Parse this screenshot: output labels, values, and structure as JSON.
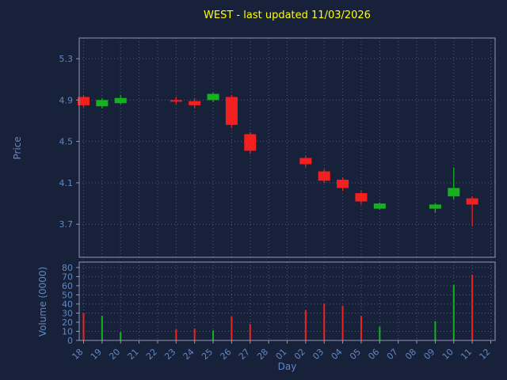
{
  "figure": {
    "title": "WEST - last updated 11/03/2026",
    "xlabel": "Day",
    "price_ylabel": "Price",
    "volume_ylabel": "Volume (0000)"
  },
  "colors": {
    "background": "#18213a",
    "title": "#ffff00",
    "label": "#6188c0",
    "tick": "#6188c0",
    "grid": "#4d5a78",
    "spine": "#8e9bb3",
    "up": "#14b31e",
    "down": "#f32020"
  },
  "chart_data": [
    {
      "type": "candlestick",
      "title": "WEST - last updated 11/03/2026",
      "xlabel": "Day",
      "ylabel": "Price",
      "x_ticks": [
        "18",
        "19",
        "20",
        "21",
        "22",
        "23",
        "24",
        "25",
        "26",
        "27",
        "28",
        "01",
        "02",
        "03",
        "04",
        "05",
        "06",
        "07",
        "08",
        "09",
        "10",
        "11",
        "12"
      ],
      "y_ticks": [
        5.3,
        4.9,
        4.5,
        4.1,
        3.7
      ],
      "ylim": [
        3.38,
        5.5
      ],
      "grid": true,
      "candles": [
        {
          "day": "18",
          "open": 4.93,
          "high": 4.95,
          "low": 4.83,
          "close": 4.85
        },
        {
          "day": "19",
          "open": 4.84,
          "high": 4.92,
          "low": 4.82,
          "close": 4.9
        },
        {
          "day": "20",
          "open": 4.87,
          "high": 4.95,
          "low": 4.86,
          "close": 4.92
        },
        {
          "day": "23",
          "open": 4.9,
          "high": 4.93,
          "low": 4.86,
          "close": 4.89
        },
        {
          "day": "24",
          "open": 4.89,
          "high": 4.92,
          "low": 4.82,
          "close": 4.85
        },
        {
          "day": "25",
          "open": 4.9,
          "high": 4.97,
          "low": 4.88,
          "close": 4.96
        },
        {
          "day": "26",
          "open": 4.93,
          "high": 4.95,
          "low": 4.63,
          "close": 4.66
        },
        {
          "day": "27",
          "open": 4.57,
          "high": 4.59,
          "low": 4.38,
          "close": 4.41
        },
        {
          "day": "02",
          "open": 4.34,
          "high": 4.36,
          "low": 4.25,
          "close": 4.28
        },
        {
          "day": "03",
          "open": 4.21,
          "high": 4.23,
          "low": 4.1,
          "close": 4.12
        },
        {
          "day": "04",
          "open": 4.13,
          "high": 4.15,
          "low": 4.02,
          "close": 4.05
        },
        {
          "day": "05",
          "open": 4.0,
          "high": 4.02,
          "low": 3.89,
          "close": 3.92
        },
        {
          "day": "06",
          "open": 3.85,
          "high": 3.91,
          "low": 3.84,
          "close": 3.9
        },
        {
          "day": "09",
          "open": 3.85,
          "high": 3.9,
          "low": 3.81,
          "close": 3.89
        },
        {
          "day": "10",
          "open": 3.97,
          "high": 4.25,
          "low": 3.94,
          "close": 4.05
        },
        {
          "day": "11",
          "open": 3.95,
          "high": 3.97,
          "low": 3.68,
          "close": 3.89
        }
      ]
    },
    {
      "type": "bar",
      "ylabel": "Volume (0000)",
      "y_ticks": [
        80,
        70,
        60,
        50,
        40,
        30,
        20,
        10,
        0
      ],
      "ylim": [
        0,
        86
      ],
      "grid": true,
      "bars": [
        {
          "day": "18",
          "value": 30,
          "direction": "down"
        },
        {
          "day": "19",
          "value": 27,
          "direction": "up"
        },
        {
          "day": "20",
          "value": 9,
          "direction": "up"
        },
        {
          "day": "23",
          "value": 12,
          "direction": "down"
        },
        {
          "day": "24",
          "value": 13,
          "direction": "down"
        },
        {
          "day": "25",
          "value": 11,
          "direction": "up"
        },
        {
          "day": "26",
          "value": 26,
          "direction": "down"
        },
        {
          "day": "27",
          "value": 18,
          "direction": "down"
        },
        {
          "day": "02",
          "value": 33,
          "direction": "down"
        },
        {
          "day": "03",
          "value": 40,
          "direction": "down"
        },
        {
          "day": "04",
          "value": 38,
          "direction": "down"
        },
        {
          "day": "05",
          "value": 27,
          "direction": "down"
        },
        {
          "day": "06",
          "value": 15,
          "direction": "up"
        },
        {
          "day": "09",
          "value": 21,
          "direction": "up"
        },
        {
          "day": "10",
          "value": 61,
          "direction": "up"
        },
        {
          "day": "11",
          "value": 72,
          "direction": "down"
        }
      ]
    }
  ]
}
